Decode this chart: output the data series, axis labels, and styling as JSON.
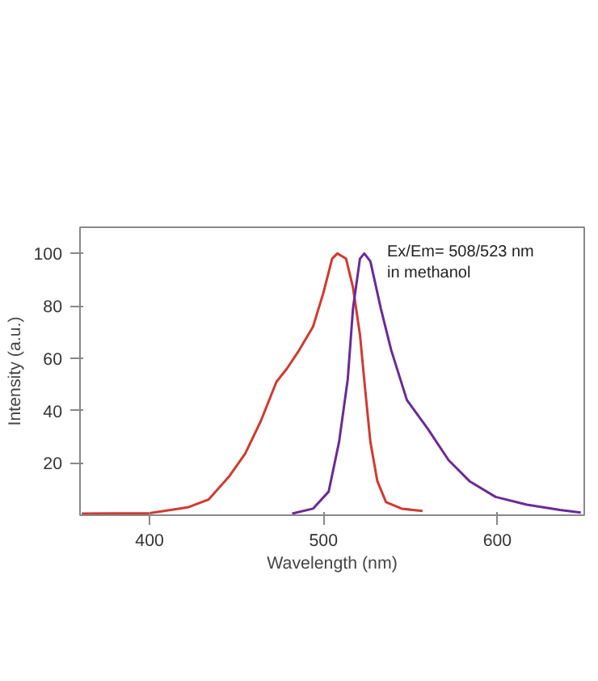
{
  "chart_data": {
    "type": "line",
    "xlabel": "Wavelength (nm)",
    "ylabel": "Intensity (a.u.)",
    "annotations": [
      "Ex/Em= 508/523 nm",
      "in methanol"
    ],
    "xlim": [
      360,
      650
    ],
    "xticks": [
      400,
      500,
      600
    ],
    "ylim": [
      0,
      110
    ],
    "yticks": [
      20,
      40,
      60,
      80,
      100
    ],
    "grid": false,
    "marker": "none",
    "line_style": "solid",
    "series": [
      {
        "color": "#d03a30",
        "x": [
          361,
          400,
          422,
          434,
          446,
          455,
          464,
          473,
          479,
          486,
          494,
          500,
          505,
          508,
          513,
          517,
          521,
          524,
          527,
          531,
          536,
          545,
          557
        ],
        "values": [
          0.6,
          0.8,
          3,
          6,
          15,
          23.5,
          36,
          51,
          56,
          63,
          72,
          85,
          98,
          100,
          98,
          87,
          69,
          48,
          28,
          13,
          5,
          2.5,
          1.6
        ]
      },
      {
        "color": "#6a2a96",
        "x": [
          482,
          494,
          503,
          509,
          514,
          517,
          521,
          523.5,
          527,
          533,
          539,
          548,
          560,
          572,
          584,
          599,
          617,
          636,
          648
        ],
        "values": [
          0.6,
          2.5,
          9,
          28,
          52,
          79,
          98,
          100,
          97,
          79,
          63,
          44,
          33,
          21,
          13,
          7,
          4,
          2,
          1
        ]
      }
    ]
  }
}
